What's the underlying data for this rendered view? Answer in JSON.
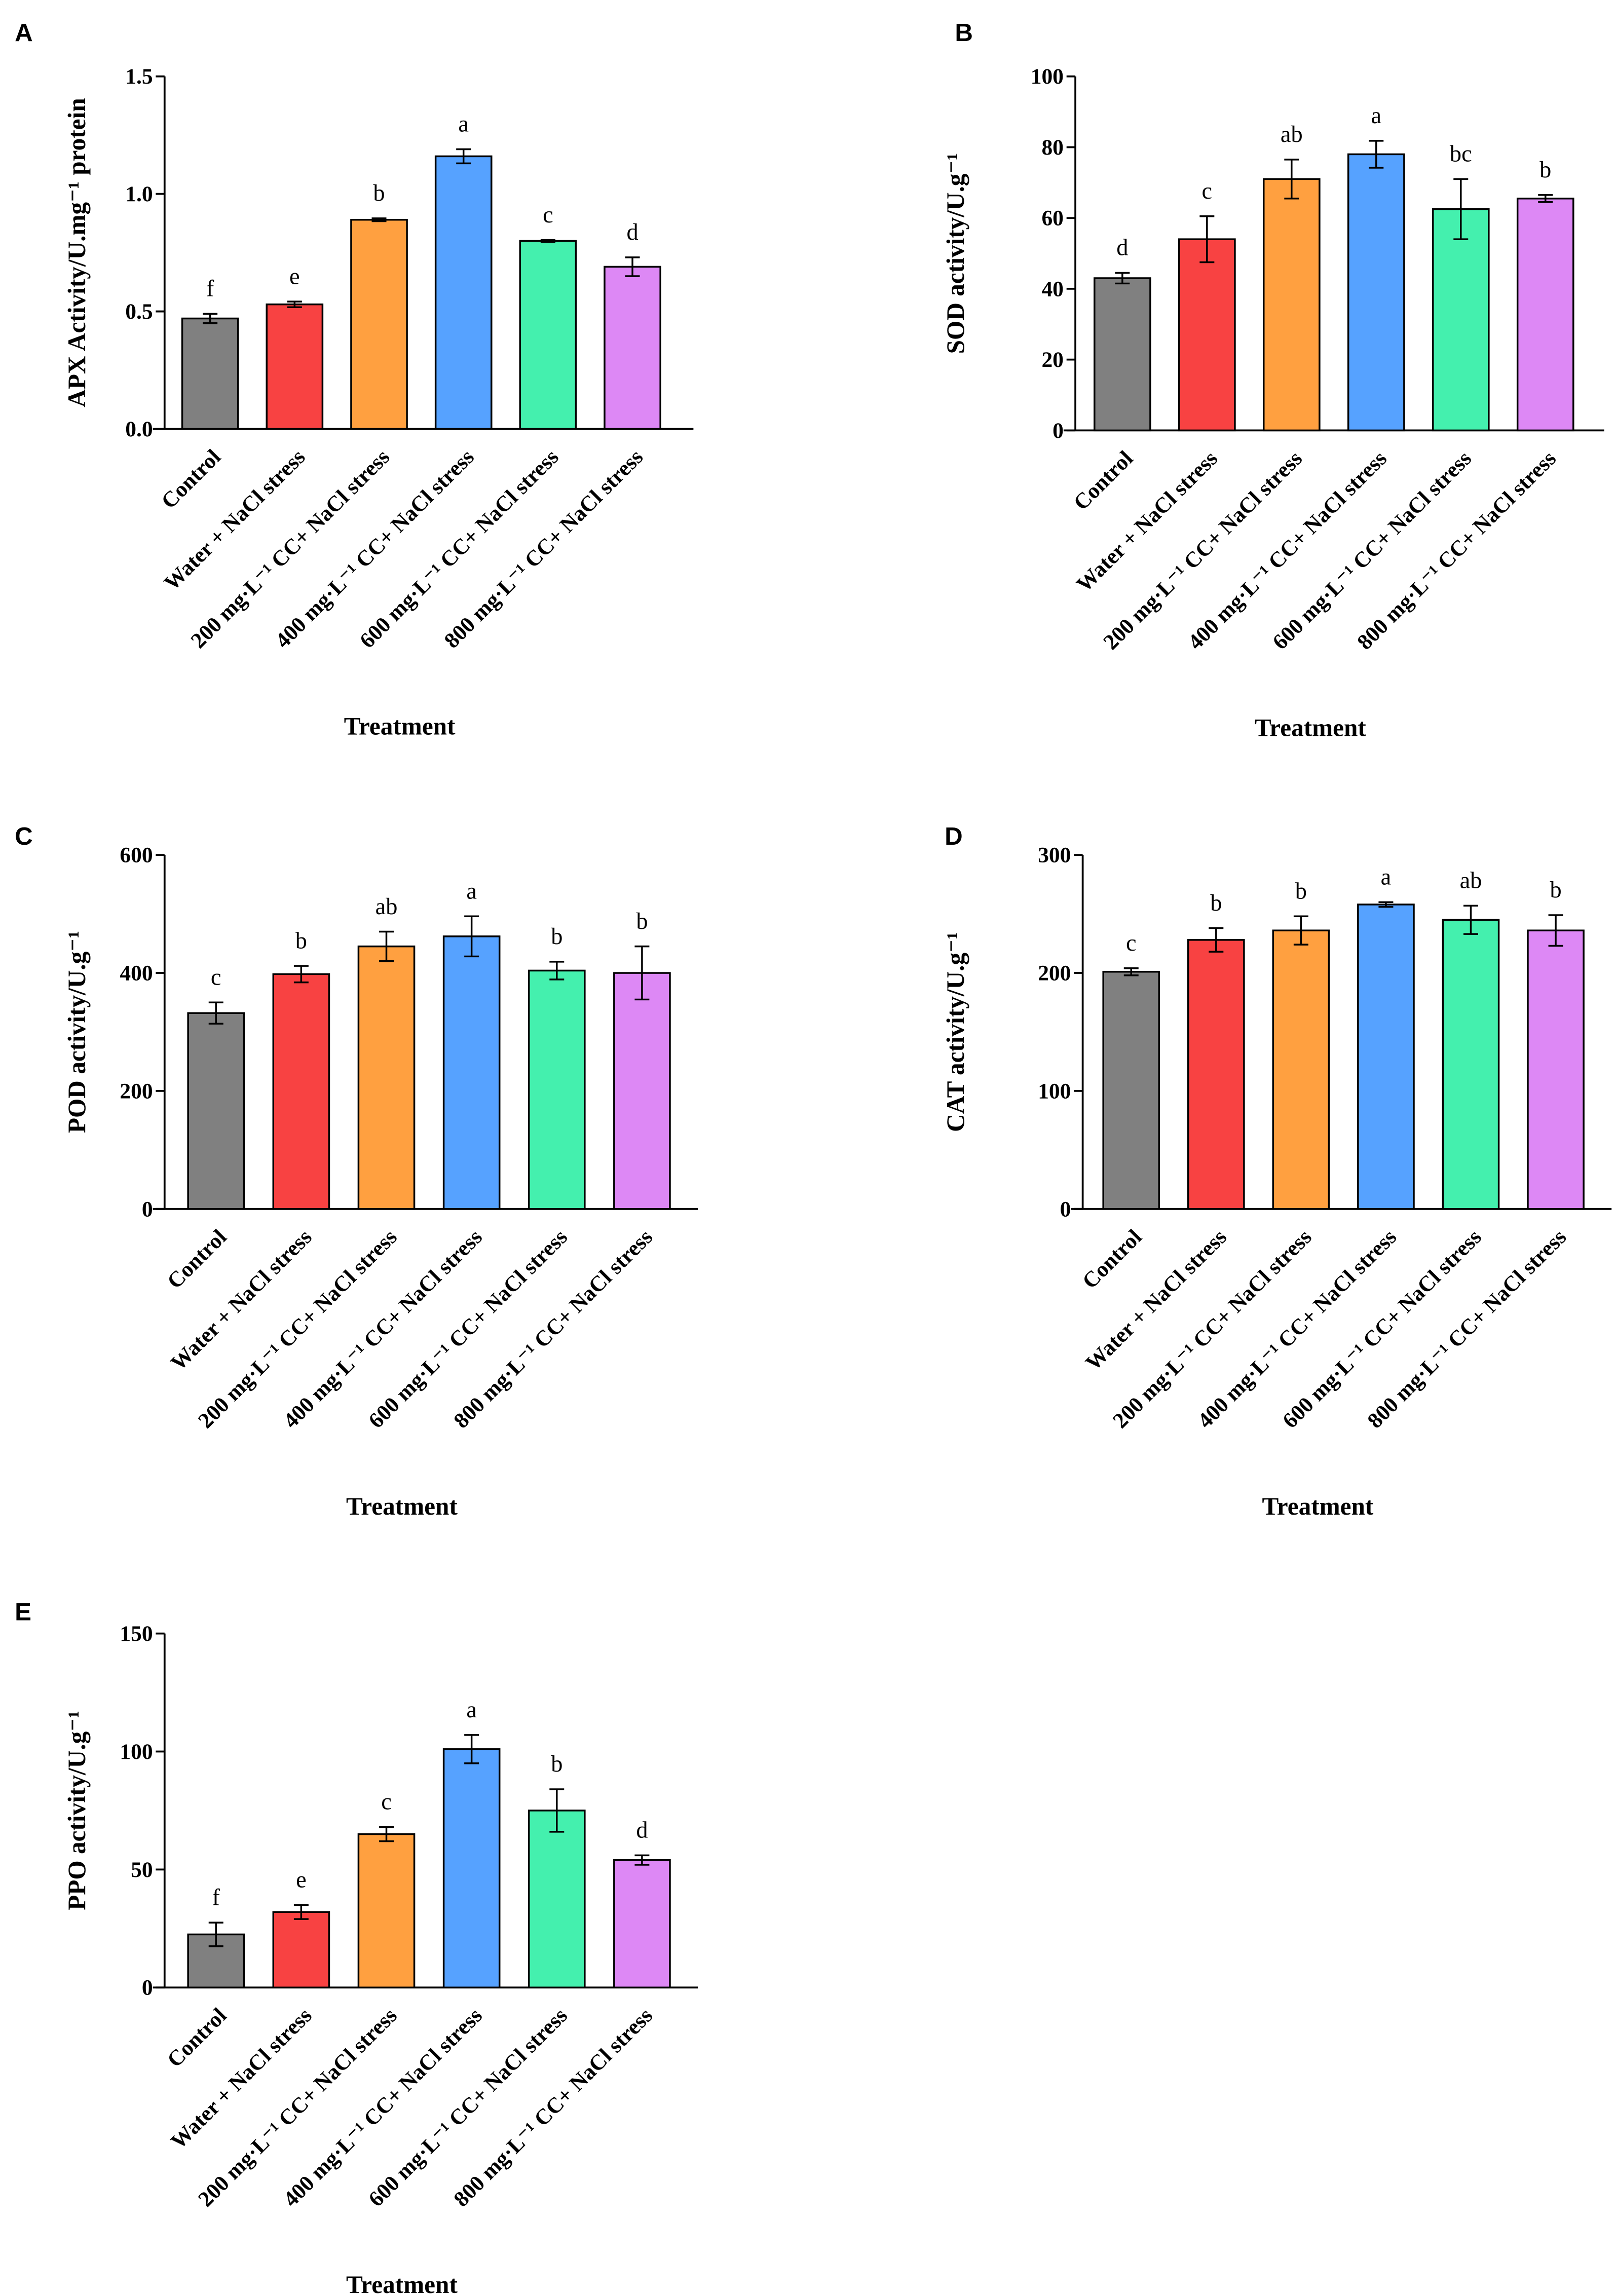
{
  "chart_data": [
    {
      "panel": "A",
      "type": "bar",
      "ylabel": "APX Activity/U.mg⁻¹ protein",
      "xlabel": "Treatment",
      "ylim": [
        0,
        1.5
      ],
      "yticks": [
        "0.0",
        "0.5",
        "1.0",
        "1.5"
      ],
      "ytick_values": [
        0,
        0.5,
        1.0,
        1.5
      ],
      "values": [
        0.47,
        0.53,
        0.89,
        1.16,
        0.8,
        0.69
      ],
      "errors": [
        0.02,
        0.012,
        0.006,
        0.03,
        0.004,
        0.04
      ],
      "letters": [
        "f",
        "e",
        "b",
        "a",
        "c",
        "d"
      ]
    },
    {
      "panel": "B",
      "type": "bar",
      "ylabel": "SOD activity/U.g⁻¹",
      "xlabel": "Treatment",
      "ylim": [
        0,
        100
      ],
      "yticks": [
        "0",
        "20",
        "40",
        "60",
        "80",
        "100"
      ],
      "ytick_values": [
        0,
        20,
        40,
        60,
        80,
        100
      ],
      "values": [
        43,
        54,
        71,
        78,
        62.5,
        65.5
      ],
      "errors": [
        1.5,
        6.5,
        5.5,
        3.8,
        8.5,
        1
      ],
      "letters": [
        "d",
        "c",
        "ab",
        "a",
        "bc",
        "b"
      ]
    },
    {
      "panel": "C",
      "type": "bar",
      "ylabel": "POD activity/U.g⁻¹",
      "xlabel": "Treatment",
      "ylim": [
        0,
        600
      ],
      "yticks": [
        "0",
        "200",
        "400",
        "600"
      ],
      "ytick_values": [
        0,
        200,
        400,
        600
      ],
      "values": [
        332,
        398,
        445,
        462,
        404,
        400
      ],
      "errors": [
        18,
        14,
        25,
        34,
        15,
        45
      ],
      "letters": [
        "c",
        "b",
        "ab",
        "a",
        "b",
        "b"
      ]
    },
    {
      "panel": "D",
      "type": "bar",
      "ylabel": "CAT activity/U.g⁻¹",
      "xlabel": "Treatment",
      "ylim": [
        0,
        300
      ],
      "yticks": [
        "0",
        "100",
        "200",
        "300"
      ],
      "ytick_values": [
        0,
        100,
        200,
        300
      ],
      "values": [
        201,
        228,
        236,
        258,
        245,
        236
      ],
      "errors": [
        3,
        10,
        12,
        2,
        12,
        13
      ],
      "letters": [
        "c",
        "b",
        "b",
        "a",
        "ab",
        "b"
      ]
    },
    {
      "panel": "E",
      "type": "bar",
      "ylabel": "PPO activity/U.g⁻¹",
      "xlabel": "Treatment",
      "ylim": [
        0,
        150
      ],
      "yticks": [
        "0",
        "50",
        "100",
        "150"
      ],
      "ytick_values": [
        0,
        50,
        100,
        150
      ],
      "values": [
        22.5,
        32,
        65,
        101,
        75,
        54
      ],
      "errors": [
        5,
        3,
        3,
        6,
        9,
        2
      ],
      "letters": [
        "f",
        "e",
        "c",
        "a",
        "b",
        "d"
      ]
    }
  ],
  "categories": [
    "Control",
    "Water + NaCl stress",
    "200 mg·L⁻¹ CC+ NaCl stress",
    "400 mg·L⁻¹ CC+ NaCl stress",
    "600 mg·L⁻¹ CC+ NaCl stress",
    "800 mg·L⁻¹ CC+ NaCl stress"
  ],
  "colors": [
    "#808080",
    "#f84242",
    "#ffa040",
    "#56a2ff",
    "#44f0ae",
    "#dd88f5"
  ]
}
